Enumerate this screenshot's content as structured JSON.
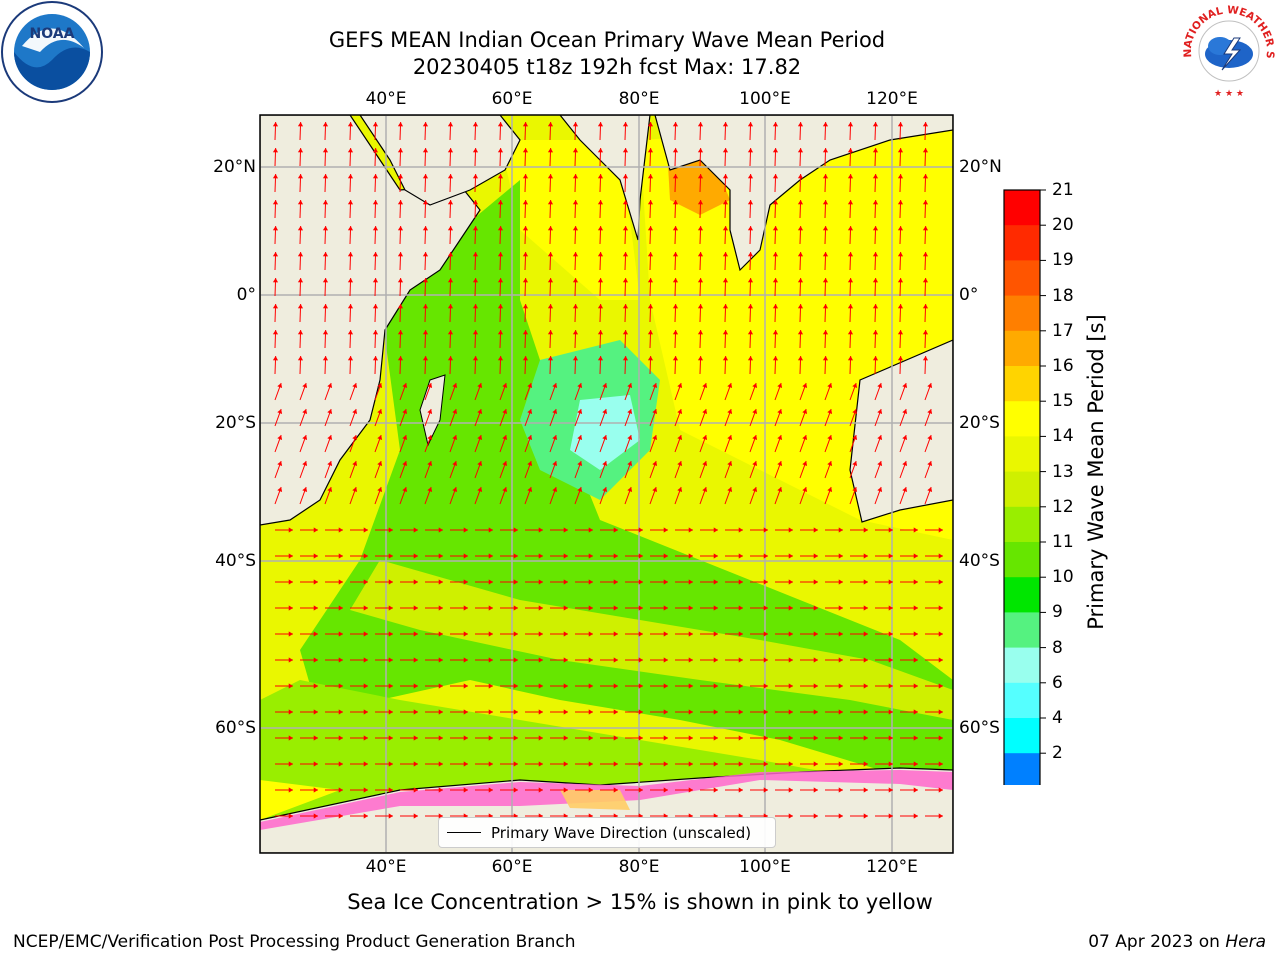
{
  "title_line1": "GEFS MEAN Indian Ocean Primary Wave Mean Period",
  "title_line2": "20230405 t18z 192h fcst   Max: 17.82",
  "map": {
    "lon_labels": [
      "40°E",
      "60°E",
      "80°E",
      "100°E",
      "120°E"
    ],
    "lat_labels": [
      "20°N",
      "0°",
      "20°S",
      "40°S",
      "60°S"
    ],
    "land_color": "#efedde",
    "arrow_color": "#ff0000",
    "legend_label": "Primary Wave Direction (unscaled)"
  },
  "colorbar": {
    "label": "Primary Wave Mean Period [s]",
    "ticks": [
      "21",
      "20",
      "19",
      "18",
      "17",
      "16",
      "15",
      "14",
      "13",
      "12",
      "11",
      "10",
      "9",
      "8",
      "6",
      "4",
      "2"
    ],
    "colors": [
      "#ff0000",
      "#ff2a00",
      "#ff5500",
      "#ff7f00",
      "#ffaa00",
      "#ffd400",
      "#ffff00",
      "#eaf700",
      "#cff000",
      "#99ee00",
      "#66e600",
      "#00e600",
      "#55f280",
      "#99ffee",
      "#55ffff",
      "#00ffff",
      "#0080ff"
    ],
    "extend_color": "#0000ff"
  },
  "caption": "Sea Ice Concentration > 15% is shown in pink to yellow",
  "footer_left": "NCEP/EMC/Verification Post Processing Product Generation Branch",
  "footer_date": "07 Apr 2023 on ",
  "footer_machine": "Hera",
  "logos": {
    "noaa_text": "NOAA",
    "nws_text": "NATIONAL WEATHER SERVICE"
  }
}
